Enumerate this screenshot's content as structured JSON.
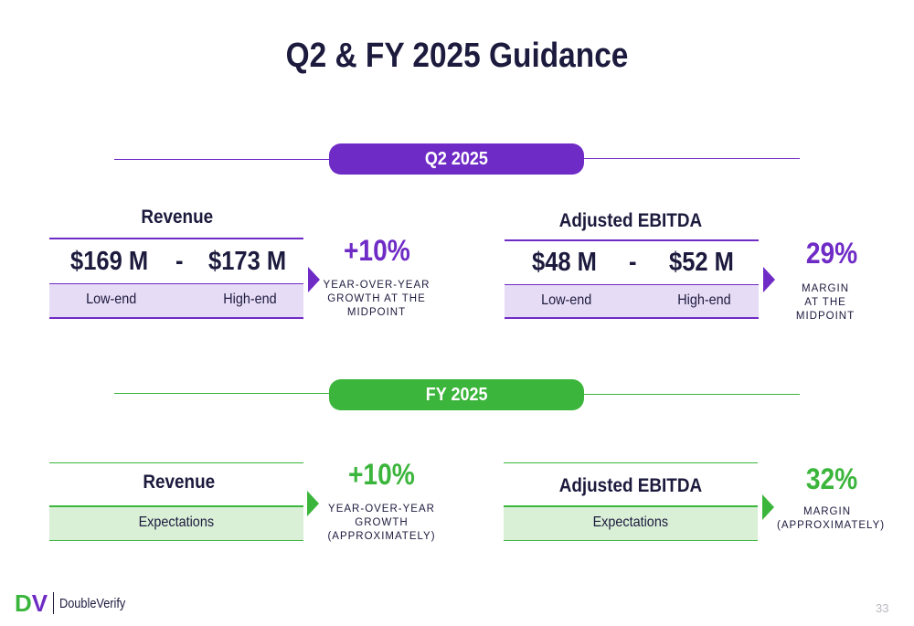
{
  "slide": {
    "title": "Q2 & FY 2025 Guidance",
    "page_number": "33"
  },
  "colors": {
    "purple": "#6f2bc6",
    "green": "#3bb53b",
    "navy": "#1c1a3d",
    "purple_fill": "#e6dcf5",
    "green_fill": "#d9f0d7"
  },
  "q2": {
    "label": "Q2 2025",
    "revenue": {
      "title": "Revenue",
      "low_value": "$169 M",
      "separator": "-",
      "high_value": "$173 M",
      "low_label": "Low-end",
      "high_label": "High-end",
      "metric": "+10%",
      "note_line1": "YEAR-OVER-YEAR",
      "note_line2": "GROWTH AT THE",
      "note_line3": "MIDPOINT"
    },
    "ebitda": {
      "title": "Adjusted EBITDA",
      "low_value": "$48 M",
      "separator": "-",
      "high_value": "$52 M",
      "low_label": "Low-end",
      "high_label": "High-end",
      "metric": "29%",
      "note_line1": "MARGIN",
      "note_line2": "AT THE",
      "note_line3": "MIDPOINT"
    }
  },
  "fy": {
    "label": "FY 2025",
    "revenue": {
      "title": "Revenue",
      "sub_label": "Expectations",
      "metric": "+10%",
      "note_line1": "YEAR-OVER-YEAR",
      "note_line2": "GROWTH",
      "note_line3": "(APPROXIMATELY)"
    },
    "ebitda": {
      "title": "Adjusted EBITDA",
      "sub_label": "Expectations",
      "metric": "32%",
      "note_line1": "MARGIN",
      "note_line2": "(APPROXIMATELY)"
    }
  },
  "logo": {
    "mark_d": "D",
    "mark_v": "V",
    "name": "DoubleVerify"
  }
}
